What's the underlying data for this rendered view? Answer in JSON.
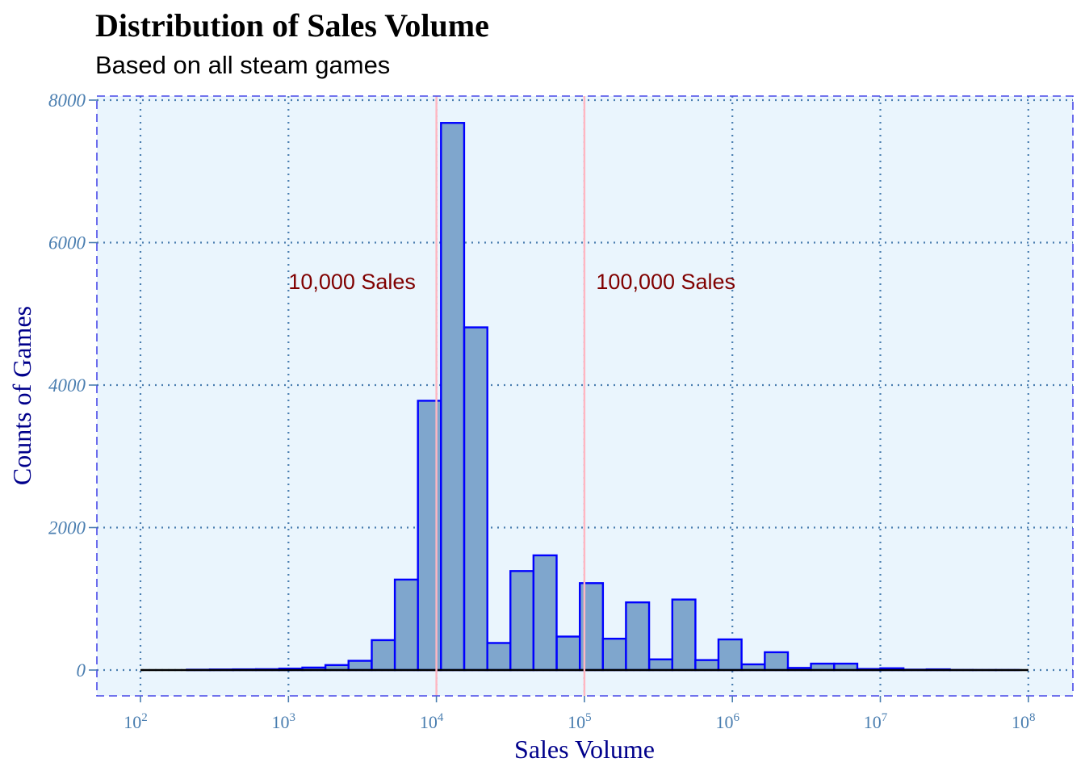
{
  "chart_data": {
    "type": "bar",
    "title": "Distribution of Sales Volume",
    "subtitle": "Based on all steam games",
    "xlabel": "Sales Volume",
    "ylabel": "Counts of Games",
    "x_scale": "log10",
    "xlim": [
      100,
      100000000
    ],
    "ylim": [
      0,
      8000
    ],
    "x_ticks": [
      100,
      1000,
      10000,
      100000,
      1000000,
      10000000,
      100000000
    ],
    "x_tick_labels": [
      {
        "base": "10",
        "exp": "2"
      },
      {
        "base": "10",
        "exp": "3"
      },
      {
        "base": "10",
        "exp": "4"
      },
      {
        "base": "10",
        "exp": "5"
      },
      {
        "base": "10",
        "exp": "6"
      },
      {
        "base": "10",
        "exp": "7"
      },
      {
        "base": "10",
        "exp": "8"
      }
    ],
    "y_ticks": [
      0,
      2000,
      4000,
      6000,
      8000
    ],
    "y_tick_labels": [
      "0",
      "2000",
      "4000",
      "6000",
      "8000"
    ],
    "bins_per_decade": 6.4,
    "bars": [
      {
        "start": 2.0,
        "count": 0
      },
      {
        "start": 2.156,
        "count": 0
      },
      {
        "start": 2.313,
        "count": 5
      },
      {
        "start": 2.469,
        "count": 8
      },
      {
        "start": 2.625,
        "count": 10
      },
      {
        "start": 2.781,
        "count": 12
      },
      {
        "start": 2.938,
        "count": 20
      },
      {
        "start": 3.094,
        "count": 35
      },
      {
        "start": 3.25,
        "count": 70
      },
      {
        "start": 3.406,
        "count": 130
      },
      {
        "start": 3.563,
        "count": 420
      },
      {
        "start": 3.719,
        "count": 1270
      },
      {
        "start": 3.875,
        "count": 3780
      },
      {
        "start": 4.031,
        "count": 7680
      },
      {
        "start": 4.188,
        "count": 4810
      },
      {
        "start": 4.344,
        "count": 380
      },
      {
        "start": 4.5,
        "count": 1390
      },
      {
        "start": 4.656,
        "count": 1610
      },
      {
        "start": 4.813,
        "count": 470
      },
      {
        "start": 4.969,
        "count": 1220
      },
      {
        "start": 5.125,
        "count": 440
      },
      {
        "start": 5.281,
        "count": 950
      },
      {
        "start": 5.438,
        "count": 150
      },
      {
        "start": 5.594,
        "count": 990
      },
      {
        "start": 5.75,
        "count": 140
      },
      {
        "start": 5.906,
        "count": 430
      },
      {
        "start": 6.063,
        "count": 80
      },
      {
        "start": 6.219,
        "count": 250
      },
      {
        "start": 6.375,
        "count": 30
      },
      {
        "start": 6.531,
        "count": 90
      },
      {
        "start": 6.688,
        "count": 90
      },
      {
        "start": 6.844,
        "count": 15
      },
      {
        "start": 7.0,
        "count": 25
      },
      {
        "start": 7.156,
        "count": 6
      },
      {
        "start": 7.313,
        "count": 10
      },
      {
        "start": 7.469,
        "count": 2
      },
      {
        "start": 7.625,
        "count": 1
      },
      {
        "start": 7.781,
        "count": 1
      },
      {
        "start": 7.938,
        "count": 0
      }
    ],
    "reference_lines": [
      {
        "x": 10000,
        "label": "10,000 Sales",
        "label_x": 1000,
        "label_y": 5450,
        "anchor": "start"
      },
      {
        "x": 100000,
        "label": "100,000 Sales",
        "label_x": 120000,
        "label_y": 5450,
        "anchor": "start"
      }
    ],
    "grid": true,
    "legend": "none",
    "colors": {
      "panel_bg": "#eaf5fd",
      "panel_border": "#4848e8",
      "grid": "#4a7eb0",
      "bar_fill": "#7fa6cd",
      "bar_stroke": "#0000ff",
      "ref_line": "#ffb6c1",
      "annotation": "#800000",
      "axis_title": "#00008b",
      "tick_label": "#4a7eb0",
      "baseline": "#000000"
    }
  }
}
